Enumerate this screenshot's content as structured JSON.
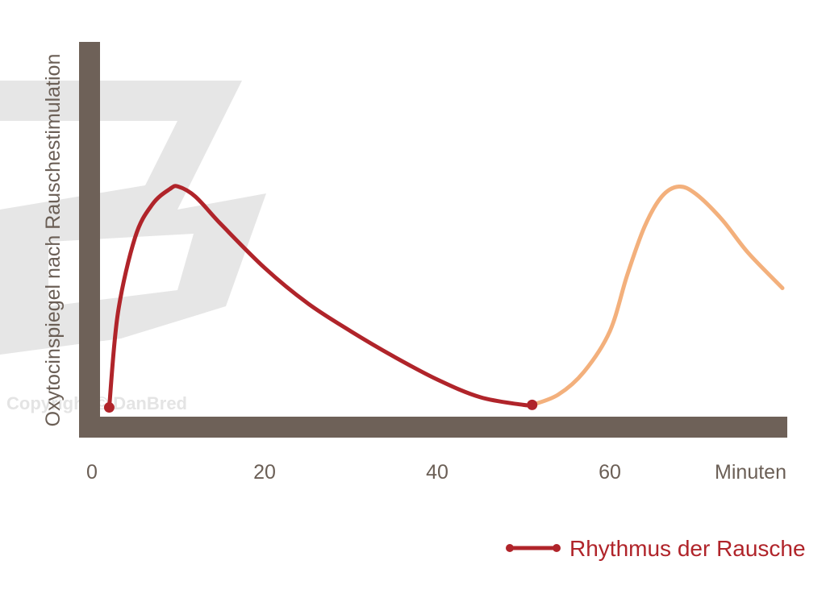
{
  "watermark": {
    "text": "Copyright © DanBred",
    "color": "#e6e6e6"
  },
  "chart_data": {
    "type": "line",
    "ylabel": "Oxytocinspiegel nach Rauschestimulation",
    "xlabel": "Minuten",
    "x_ticks": [
      0,
      20,
      40,
      60
    ],
    "xlim": [
      0,
      80
    ],
    "ylim": [
      0,
      100
    ],
    "series": [
      {
        "name": "Rhythmus der Rausche",
        "color": "#b0242a",
        "points": [
          [
            2,
            3
          ],
          [
            3,
            40
          ],
          [
            5,
            70
          ],
          [
            7,
            83
          ],
          [
            9,
            89
          ],
          [
            10,
            90
          ],
          [
            12,
            86
          ],
          [
            15,
            75
          ],
          [
            20,
            58
          ],
          [
            25,
            44
          ],
          [
            30,
            33
          ],
          [
            35,
            23
          ],
          [
            40,
            14
          ],
          [
            45,
            7
          ],
          [
            50,
            4
          ],
          [
            51,
            4
          ]
        ]
      },
      {
        "name": "",
        "color": "#f3b07c",
        "points": [
          [
            51,
            4
          ],
          [
            54,
            8
          ],
          [
            57,
            17
          ],
          [
            60,
            33
          ],
          [
            62,
            55
          ],
          [
            64,
            74
          ],
          [
            66,
            86
          ],
          [
            68,
            90
          ],
          [
            70,
            87
          ],
          [
            73,
            77
          ],
          [
            76,
            64
          ],
          [
            80,
            50
          ]
        ]
      }
    ],
    "markers": [
      [
        2,
        3
      ],
      [
        51,
        4
      ]
    ],
    "axis_color": "#6e6158",
    "legend": {
      "label": "Rhythmus der Rausche",
      "placement": "bottom-right"
    }
  }
}
